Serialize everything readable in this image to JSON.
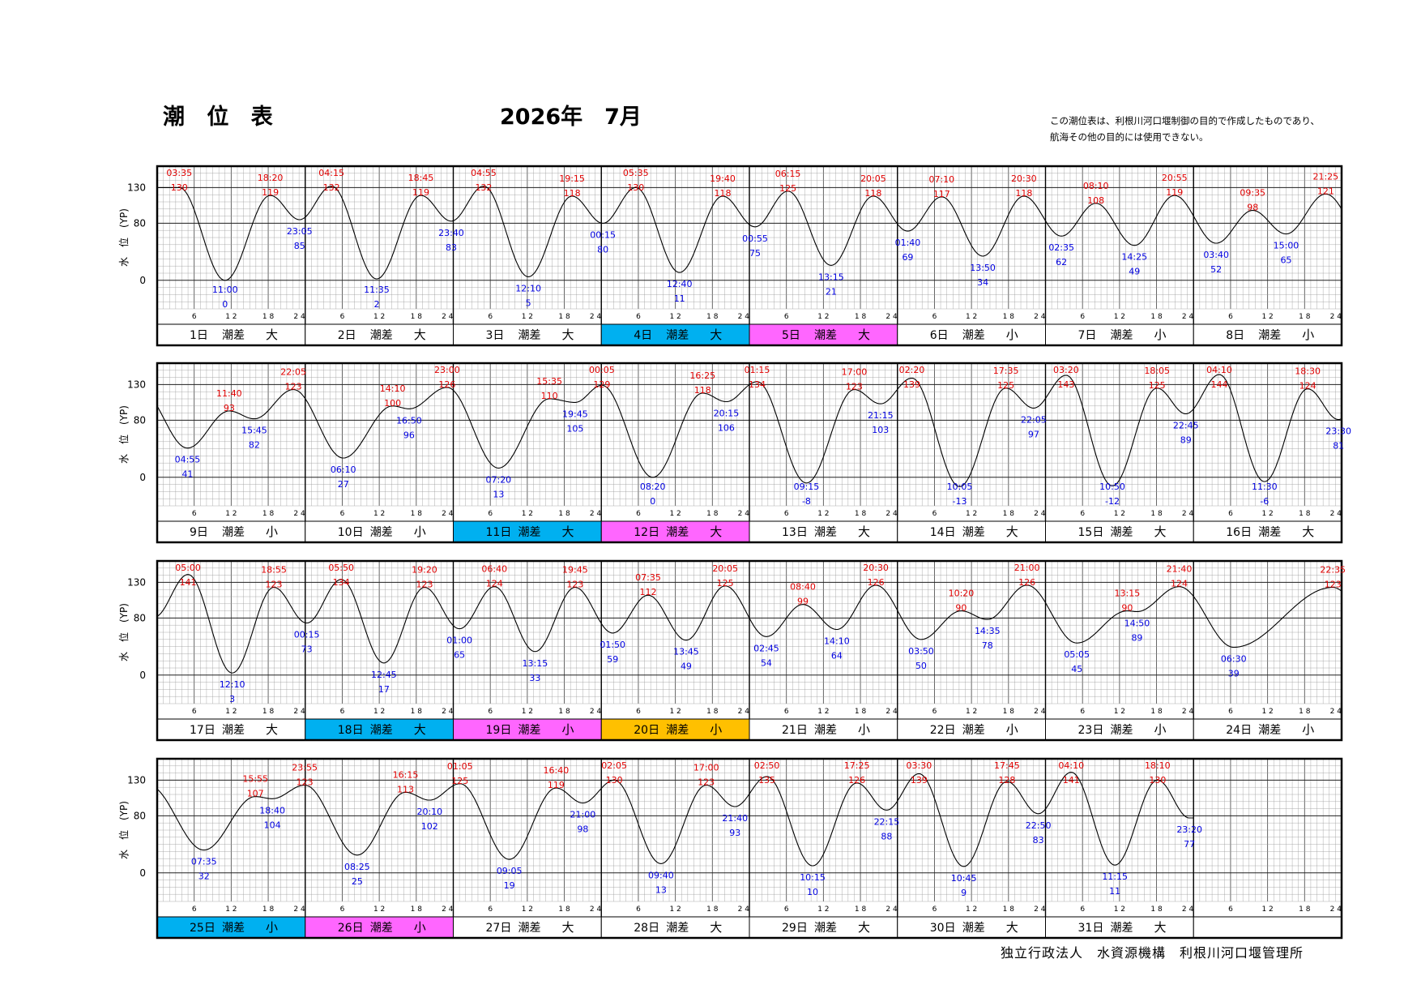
{
  "header": {
    "title": "潮 位 表",
    "year_month": "2026年　7月",
    "note_line1": "この潮位表は、利根川河口堰制御の目的で作成したものであり、",
    "note_line2": "航海その他の目的には使用できない。"
  },
  "footer": {
    "org": "独立行政法人　水資源機構　利根川河口堰管理所"
  },
  "chart_data": {
    "type": "line",
    "ylabel": "水　位　(YP)",
    "y_ticks": [
      0,
      80,
      130
    ],
    "ylim": [
      -40,
      160
    ],
    "x_ticks": [
      "6",
      "12",
      "18",
      "24"
    ],
    "grid": true,
    "colors": {
      "line": "#000000",
      "high": "#e00000",
      "low": "#0000e0",
      "blue_label": "#00b0f0",
      "pink_label": "#ff66ff",
      "orange_label": "#ffc000"
    },
    "diff_label": "潮差",
    "days": [
      {
        "day": "1日",
        "diff": "大",
        "label_color": "",
        "extremes": [
          {
            "t": "03:35",
            "v": 130,
            "type": "high"
          },
          {
            "t": "11:00",
            "v": 0,
            "type": "low"
          },
          {
            "t": "18:20",
            "v": 119,
            "type": "high"
          },
          {
            "t": "23:05",
            "v": 85,
            "type": "low"
          }
        ]
      },
      {
        "day": "2日",
        "diff": "大",
        "label_color": "",
        "extremes": [
          {
            "t": "04:15",
            "v": 132,
            "type": "high"
          },
          {
            "t": "11:35",
            "v": 2,
            "type": "low"
          },
          {
            "t": "18:45",
            "v": 119,
            "type": "high"
          },
          {
            "t": "23:40",
            "v": 83,
            "type": "low"
          }
        ]
      },
      {
        "day": "3日",
        "diff": "大",
        "label_color": "",
        "extremes": [
          {
            "t": "04:55",
            "v": 132,
            "type": "high"
          },
          {
            "t": "12:10",
            "v": 5,
            "type": "low"
          },
          {
            "t": "19:15",
            "v": 118,
            "type": "high"
          }
        ]
      },
      {
        "day": "4日",
        "diff": "大",
        "label_color": "blue",
        "extremes": [
          {
            "t": "00:15",
            "v": 80,
            "type": "low"
          },
          {
            "t": "05:35",
            "v": 130,
            "type": "high"
          },
          {
            "t": "12:40",
            "v": 11,
            "type": "low"
          },
          {
            "t": "19:40",
            "v": 118,
            "type": "high"
          }
        ]
      },
      {
        "day": "5日",
        "diff": "大",
        "label_color": "pink",
        "extremes": [
          {
            "t": "00:55",
            "v": 75,
            "type": "low"
          },
          {
            "t": "06:15",
            "v": 125,
            "type": "high"
          },
          {
            "t": "13:15",
            "v": 21,
            "type": "low"
          },
          {
            "t": "20:05",
            "v": 118,
            "type": "high"
          }
        ]
      },
      {
        "day": "6日",
        "diff": "小",
        "label_color": "",
        "extremes": [
          {
            "t": "01:40",
            "v": 69,
            "type": "low"
          },
          {
            "t": "07:10",
            "v": 117,
            "type": "high"
          },
          {
            "t": "13:50",
            "v": 34,
            "type": "low"
          },
          {
            "t": "20:30",
            "v": 118,
            "type": "high"
          }
        ]
      },
      {
        "day": "7日",
        "diff": "小",
        "label_color": "",
        "extremes": [
          {
            "t": "02:35",
            "v": 62,
            "type": "low"
          },
          {
            "t": "08:10",
            "v": 108,
            "type": "high"
          },
          {
            "t": "14:25",
            "v": 49,
            "type": "low"
          },
          {
            "t": "20:55",
            "v": 119,
            "type": "high"
          }
        ]
      },
      {
        "day": "8日",
        "diff": "小",
        "label_color": "",
        "extremes": [
          {
            "t": "03:40",
            "v": 52,
            "type": "low"
          },
          {
            "t": "09:35",
            "v": 98,
            "type": "high"
          },
          {
            "t": "15:00",
            "v": 65,
            "type": "low"
          },
          {
            "t": "21:25",
            "v": 121,
            "type": "high"
          }
        ]
      },
      {
        "day": "9日",
        "diff": "小",
        "label_color": "",
        "extremes": [
          {
            "t": "04:55",
            "v": 41,
            "type": "low"
          },
          {
            "t": "11:40",
            "v": 93,
            "type": "high"
          },
          {
            "t": "15:45",
            "v": 82,
            "type": "low"
          },
          {
            "t": "22:05",
            "v": 123,
            "type": "high"
          }
        ]
      },
      {
        "day": "10日",
        "diff": "小",
        "label_color": "",
        "extremes": [
          {
            "t": "06:10",
            "v": 27,
            "type": "low"
          },
          {
            "t": "14:10",
            "v": 100,
            "type": "high"
          },
          {
            "t": "16:50",
            "v": 96,
            "type": "low"
          },
          {
            "t": "23:00",
            "v": 126,
            "type": "high"
          }
        ]
      },
      {
        "day": "11日",
        "diff": "大",
        "label_color": "blue",
        "extremes": [
          {
            "t": "07:20",
            "v": 13,
            "type": "low"
          },
          {
            "t": "15:35",
            "v": 110,
            "type": "high"
          },
          {
            "t": "19:45",
            "v": 105,
            "type": "low"
          }
        ]
      },
      {
        "day": "12日",
        "diff": "大",
        "label_color": "pink",
        "extremes": [
          {
            "t": "00:05",
            "v": 129,
            "type": "high"
          },
          {
            "t": "08:20",
            "v": 0,
            "type": "low"
          },
          {
            "t": "16:25",
            "v": 118,
            "type": "high"
          },
          {
            "t": "20:15",
            "v": 106,
            "type": "low"
          }
        ]
      },
      {
        "day": "13日",
        "diff": "大",
        "label_color": "",
        "extremes": [
          {
            "t": "01:15",
            "v": 134,
            "type": "high"
          },
          {
            "t": "09:15",
            "v": -8,
            "type": "low"
          },
          {
            "t": "17:00",
            "v": 123,
            "type": "high"
          },
          {
            "t": "21:15",
            "v": 103,
            "type": "low"
          }
        ]
      },
      {
        "day": "14日",
        "diff": "大",
        "label_color": "",
        "extremes": [
          {
            "t": "02:20",
            "v": 139,
            "type": "high"
          },
          {
            "t": "10:05",
            "v": -13,
            "type": "low"
          },
          {
            "t": "17:35",
            "v": 125,
            "type": "high"
          },
          {
            "t": "22:05",
            "v": 97,
            "type": "low"
          }
        ]
      },
      {
        "day": "15日",
        "diff": "大",
        "label_color": "",
        "extremes": [
          {
            "t": "03:20",
            "v": 143,
            "type": "high"
          },
          {
            "t": "10:50",
            "v": -12,
            "type": "low"
          },
          {
            "t": "18:05",
            "v": 125,
            "type": "high"
          },
          {
            "t": "22:45",
            "v": 89,
            "type": "low"
          }
        ]
      },
      {
        "day": "16日",
        "diff": "大",
        "label_color": "",
        "extremes": [
          {
            "t": "04:10",
            "v": 144,
            "type": "high"
          },
          {
            "t": "11:30",
            "v": -6,
            "type": "low"
          },
          {
            "t": "18:30",
            "v": 124,
            "type": "high"
          },
          {
            "t": "23:30",
            "v": 81,
            "type": "low"
          }
        ]
      },
      {
        "day": "17日",
        "diff": "大",
        "label_color": "",
        "extremes": [
          {
            "t": "05:00",
            "v": 141,
            "type": "high"
          },
          {
            "t": "12:10",
            "v": 3,
            "type": "low"
          },
          {
            "t": "18:55",
            "v": 123,
            "type": "high"
          }
        ]
      },
      {
        "day": "18日",
        "diff": "大",
        "label_color": "blue",
        "extremes": [
          {
            "t": "00:15",
            "v": 73,
            "type": "low"
          },
          {
            "t": "05:50",
            "v": 134,
            "type": "high"
          },
          {
            "t": "12:45",
            "v": 17,
            "type": "low"
          },
          {
            "t": "19:20",
            "v": 123,
            "type": "high"
          }
        ]
      },
      {
        "day": "19日",
        "diff": "小",
        "label_color": "pink",
        "extremes": [
          {
            "t": "01:00",
            "v": 65,
            "type": "low"
          },
          {
            "t": "06:40",
            "v": 124,
            "type": "high"
          },
          {
            "t": "13:15",
            "v": 33,
            "type": "low"
          },
          {
            "t": "19:45",
            "v": 123,
            "type": "high"
          }
        ]
      },
      {
        "day": "20日",
        "diff": "小",
        "label_color": "orange",
        "extremes": [
          {
            "t": "01:50",
            "v": 59,
            "type": "low"
          },
          {
            "t": "07:35",
            "v": 112,
            "type": "high"
          },
          {
            "t": "13:45",
            "v": 49,
            "type": "low"
          },
          {
            "t": "20:05",
            "v": 125,
            "type": "high"
          }
        ]
      },
      {
        "day": "21日",
        "diff": "小",
        "label_color": "",
        "extremes": [
          {
            "t": "02:45",
            "v": 54,
            "type": "low"
          },
          {
            "t": "08:40",
            "v": 99,
            "type": "high"
          },
          {
            "t": "14:10",
            "v": 64,
            "type": "low"
          },
          {
            "t": "20:30",
            "v": 126,
            "type": "high"
          }
        ]
      },
      {
        "day": "22日",
        "diff": "小",
        "label_color": "",
        "extremes": [
          {
            "t": "03:50",
            "v": 50,
            "type": "low"
          },
          {
            "t": "10:20",
            "v": 90,
            "type": "high"
          },
          {
            "t": "14:35",
            "v": 78,
            "type": "low"
          },
          {
            "t": "21:00",
            "v": 126,
            "type": "high"
          }
        ]
      },
      {
        "day": "23日",
        "diff": "小",
        "label_color": "",
        "extremes": [
          {
            "t": "05:05",
            "v": 45,
            "type": "low"
          },
          {
            "t": "13:15",
            "v": 90,
            "type": "high"
          },
          {
            "t": "14:50",
            "v": 89,
            "type": "low"
          },
          {
            "t": "21:40",
            "v": 124,
            "type": "high"
          }
        ]
      },
      {
        "day": "24日",
        "diff": "小",
        "label_color": "",
        "extremes": [
          {
            "t": "06:30",
            "v": 39,
            "type": "low"
          },
          {
            "t": "22:35",
            "v": 123,
            "type": "high"
          }
        ]
      },
      {
        "day": "25日",
        "diff": "小",
        "label_color": "blue",
        "extremes": [
          {
            "t": "07:35",
            "v": 32,
            "type": "low"
          },
          {
            "t": "15:55",
            "v": 107,
            "type": "high"
          },
          {
            "t": "18:40",
            "v": 104,
            "type": "low"
          },
          {
            "t": "23:55",
            "v": 123,
            "type": "high"
          }
        ]
      },
      {
        "day": "26日",
        "diff": "小",
        "label_color": "pink",
        "extremes": [
          {
            "t": "08:25",
            "v": 25,
            "type": "low"
          },
          {
            "t": "16:15",
            "v": 113,
            "type": "high"
          },
          {
            "t": "20:10",
            "v": 102,
            "type": "low"
          }
        ]
      },
      {
        "day": "27日",
        "diff": "大",
        "label_color": "",
        "extremes": [
          {
            "t": "01:05",
            "v": 125,
            "type": "high"
          },
          {
            "t": "09:05",
            "v": 19,
            "type": "low"
          },
          {
            "t": "16:40",
            "v": 119,
            "type": "high"
          },
          {
            "t": "21:00",
            "v": 98,
            "type": "low"
          }
        ]
      },
      {
        "day": "28日",
        "diff": "大",
        "label_color": "",
        "extremes": [
          {
            "t": "02:05",
            "v": 130,
            "type": "high"
          },
          {
            "t": "09:40",
            "v": 13,
            "type": "low"
          },
          {
            "t": "17:00",
            "v": 123,
            "type": "high"
          },
          {
            "t": "21:40",
            "v": 93,
            "type": "low"
          }
        ]
      },
      {
        "day": "29日",
        "diff": "大",
        "label_color": "",
        "extremes": [
          {
            "t": "02:50",
            "v": 135,
            "type": "high"
          },
          {
            "t": "10:15",
            "v": 10,
            "type": "low"
          },
          {
            "t": "17:25",
            "v": 126,
            "type": "high"
          },
          {
            "t": "22:15",
            "v": 88,
            "type": "low"
          }
        ]
      },
      {
        "day": "30日",
        "diff": "大",
        "label_color": "",
        "extremes": [
          {
            "t": "03:30",
            "v": 139,
            "type": "high"
          },
          {
            "t": "10:45",
            "v": 9,
            "type": "low"
          },
          {
            "t": "17:45",
            "v": 128,
            "type": "high"
          },
          {
            "t": "22:50",
            "v": 83,
            "type": "low"
          }
        ]
      },
      {
        "day": "31日",
        "diff": "大",
        "label_color": "",
        "extremes": [
          {
            "t": "04:10",
            "v": 141,
            "type": "high"
          },
          {
            "t": "11:15",
            "v": 11,
            "type": "low"
          },
          {
            "t": "18:10",
            "v": 130,
            "type": "high"
          },
          {
            "t": "23:20",
            "v": 77,
            "type": "low"
          }
        ]
      }
    ]
  }
}
